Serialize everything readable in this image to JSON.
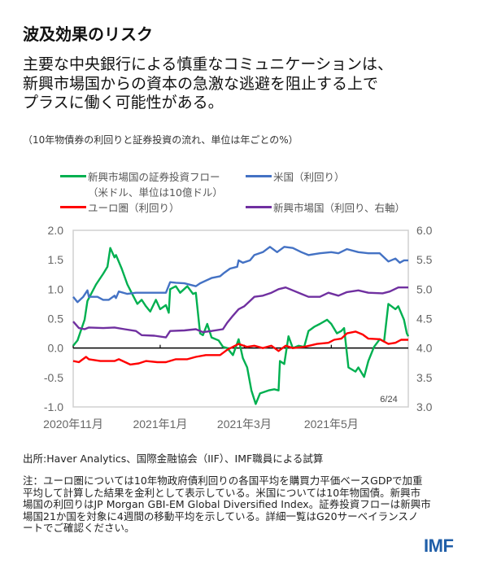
{
  "title": "波及効果のリスク",
  "subtitle_lines": [
    "主要な中央銀行による慎重なコミュニケーションは、",
    "新興市場国からの資本の急激な逃避を阻止する上で",
    "プラスに働く可能性がある。"
  ],
  "units_note": "（10年物債券の利回りと証券投資の流れ、単位は年ごとの%）",
  "legend": [
    {
      "label": "新興市場国の証券投資フロー",
      "label2": "（米ドル、単位は10億ドル）",
      "color": "#00b050"
    },
    {
      "label": "米国（利回り）",
      "color": "#4472c4"
    },
    {
      "label": "ユーロ圏（利回り）",
      "color": "#ff0000"
    },
    {
      "label": "新興市場国（利回り、右軸）",
      "color": "#7030a0"
    }
  ],
  "source": "出所:Haver Analytics、国際金融協会（IIF）、IMF職員による試算",
  "note_lines": [
    "注：ユーロ圏については10年物政府債利回りの各国平均を購買力平価ベースGDPで加重",
    "平均して計算した結果を金利として表示している。米国については10年物国債。新興市",
    "場国の利回りはJP Morgan GBI-EM Global Diversified Index。証券投資フローは新興市",
    "場国21か国を対象に4週間の移動平均を示している。詳細一覧はG20サーベイランスノ",
    "ートでご確認ください。"
  ],
  "logo": "IMF",
  "chart_data": {
    "type": "line",
    "xlim": [
      "2020-11-01",
      "2021-06-24"
    ],
    "x_ticks": [
      {
        "date": "2020-11-01",
        "label": "2020年11月"
      },
      {
        "date": "2021-01-01",
        "label": "2021年1月"
      },
      {
        "date": "2021-03-01",
        "label": "2021年3月"
      },
      {
        "date": "2021-05-01",
        "label": "2021年5月"
      }
    ],
    "ylim_left": [
      -1.0,
      2.0
    ],
    "y_ticks_left": [
      "2.0",
      "1.5",
      "1.0",
      "0.5",
      "0.0",
      "-0.5",
      "-1.0"
    ],
    "ylim_right": [
      3.0,
      6.0
    ],
    "y_ticks_right": [
      "6.0",
      "5.5",
      "5.0",
      "4.5",
      "4.0",
      "3.5",
      "3.0"
    ],
    "annotation": "6/24",
    "grid": false,
    "series": [
      {
        "name": "新興市場国の証券投資フロー（米ドル、単位は10億ドル）",
        "axis": "left",
        "color": "#00b050",
        "points": [
          [
            "2020-11-01",
            0.04
          ],
          [
            "2020-11-04",
            0.13
          ],
          [
            "2020-11-09",
            0.48
          ],
          [
            "2020-11-11",
            0.8
          ],
          [
            "2020-11-17",
            1.08
          ],
          [
            "2020-11-22",
            1.26
          ],
          [
            "2020-11-25",
            1.38
          ],
          [
            "2020-11-27",
            1.7
          ],
          [
            "2020-11-30",
            1.54
          ],
          [
            "2020-12-01",
            1.58
          ],
          [
            "2020-12-05",
            1.35
          ],
          [
            "2020-12-09",
            1.08
          ],
          [
            "2020-12-13",
            0.89
          ],
          [
            "2020-12-16",
            0.75
          ],
          [
            "2020-12-19",
            0.82
          ],
          [
            "2020-12-22",
            0.71
          ],
          [
            "2020-12-25",
            0.62
          ],
          [
            "2020-12-29",
            0.82
          ],
          [
            "2021-01-01",
            0.66
          ],
          [
            "2021-01-05",
            0.73
          ],
          [
            "2021-01-07",
            0.6
          ],
          [
            "2021-01-08",
            1.0
          ],
          [
            "2021-01-12",
            1.05
          ],
          [
            "2021-01-15",
            0.94
          ],
          [
            "2021-01-20",
            1.05
          ],
          [
            "2021-01-24",
            0.92
          ],
          [
            "2021-01-26",
            0.94
          ],
          [
            "2021-01-29",
            0.25
          ],
          [
            "2021-01-31",
            0.22
          ],
          [
            "2021-02-03",
            0.41
          ],
          [
            "2021-02-06",
            0.18
          ],
          [
            "2021-02-11",
            0.13
          ],
          [
            "2021-02-14",
            0.02
          ],
          [
            "2021-02-17",
            0.0
          ],
          [
            "2021-02-21",
            -0.12
          ],
          [
            "2021-02-25",
            0.15
          ],
          [
            "2021-02-28",
            -0.17
          ],
          [
            "2021-03-03",
            -0.33
          ],
          [
            "2021-03-06",
            -0.72
          ],
          [
            "2021-03-09",
            -0.95
          ],
          [
            "2021-03-12",
            -0.77
          ],
          [
            "2021-03-18",
            -0.72
          ],
          [
            "2021-03-22",
            -0.7
          ],
          [
            "2021-03-25",
            -0.72
          ],
          [
            "2021-03-26",
            -0.22
          ],
          [
            "2021-03-29",
            -0.27
          ],
          [
            "2021-04-01",
            0.2
          ],
          [
            "2021-04-04",
            0.0
          ],
          [
            "2021-04-08",
            0.04
          ],
          [
            "2021-04-12",
            0.02
          ],
          [
            "2021-04-15",
            0.29
          ],
          [
            "2021-04-19",
            0.36
          ],
          [
            "2021-04-23",
            0.41
          ],
          [
            "2021-04-28",
            0.48
          ],
          [
            "2021-05-01",
            0.41
          ],
          [
            "2021-05-05",
            0.25
          ],
          [
            "2021-05-08",
            0.29
          ],
          [
            "2021-05-10",
            0.34
          ],
          [
            "2021-05-13",
            -0.33
          ],
          [
            "2021-05-18",
            -0.4
          ],
          [
            "2021-05-20",
            -0.33
          ],
          [
            "2021-05-24",
            -0.49
          ],
          [
            "2021-05-27",
            -0.22
          ],
          [
            "2021-05-31",
            0.02
          ],
          [
            "2021-06-04",
            0.15
          ],
          [
            "2021-06-07",
            0.11
          ],
          [
            "2021-06-10",
            0.75
          ],
          [
            "2021-06-15",
            0.66
          ],
          [
            "2021-06-17",
            0.71
          ],
          [
            "2021-06-21",
            0.48
          ],
          [
            "2021-06-23",
            0.25
          ],
          [
            "2021-06-24",
            0.2
          ]
        ]
      },
      {
        "name": "米国（利回り）",
        "axis": "left",
        "color": "#4472c4",
        "points": [
          [
            "2020-11-01",
            0.87
          ],
          [
            "2020-11-04",
            0.78
          ],
          [
            "2020-11-08",
            0.87
          ],
          [
            "2020-11-11",
            0.98
          ],
          [
            "2020-11-12",
            0.87
          ],
          [
            "2020-11-18",
            0.87
          ],
          [
            "2020-11-22",
            0.82
          ],
          [
            "2020-11-26",
            0.82
          ],
          [
            "2020-11-30",
            0.89
          ],
          [
            "2020-12-01",
            0.85
          ],
          [
            "2020-12-03",
            0.96
          ],
          [
            "2020-12-09",
            0.92
          ],
          [
            "2020-12-15",
            0.94
          ],
          [
            "2020-12-22",
            0.94
          ],
          [
            "2021-01-05",
            0.94
          ],
          [
            "2021-01-08",
            1.12
          ],
          [
            "2021-01-12",
            1.11
          ],
          [
            "2021-01-18",
            1.1
          ],
          [
            "2021-01-26",
            1.05
          ],
          [
            "2021-01-29",
            1.1
          ],
          [
            "2021-02-06",
            1.19
          ],
          [
            "2021-02-12",
            1.22
          ],
          [
            "2021-02-15",
            1.28
          ],
          [
            "2021-02-19",
            1.35
          ],
          [
            "2021-02-24",
            1.38
          ],
          [
            "2021-02-25",
            1.49
          ],
          [
            "2021-02-28",
            1.45
          ],
          [
            "2021-03-05",
            1.49
          ],
          [
            "2021-03-08",
            1.58
          ],
          [
            "2021-03-14",
            1.63
          ],
          [
            "2021-03-19",
            1.72
          ],
          [
            "2021-03-24",
            1.63
          ],
          [
            "2021-03-29",
            1.72
          ],
          [
            "2021-04-04",
            1.7
          ],
          [
            "2021-04-10",
            1.63
          ],
          [
            "2021-04-15",
            1.58
          ],
          [
            "2021-04-23",
            1.61
          ],
          [
            "2021-05-01",
            1.63
          ],
          [
            "2021-05-06",
            1.61
          ],
          [
            "2021-05-12",
            1.68
          ],
          [
            "2021-05-20",
            1.63
          ],
          [
            "2021-05-27",
            1.61
          ],
          [
            "2021-06-04",
            1.61
          ],
          [
            "2021-06-10",
            1.47
          ],
          [
            "2021-06-15",
            1.52
          ],
          [
            "2021-06-18",
            1.45
          ],
          [
            "2021-06-21",
            1.49
          ],
          [
            "2021-06-24",
            1.49
          ]
        ]
      },
      {
        "name": "ユーロ圏（利回り）",
        "axis": "left",
        "color": "#ff0000",
        "points": [
          [
            "2020-11-01",
            -0.22
          ],
          [
            "2020-11-05",
            -0.24
          ],
          [
            "2020-11-10",
            -0.15
          ],
          [
            "2020-11-12",
            -0.19
          ],
          [
            "2020-11-20",
            -0.22
          ],
          [
            "2020-11-30",
            -0.22
          ],
          [
            "2020-12-03",
            -0.19
          ],
          [
            "2020-12-11",
            -0.28
          ],
          [
            "2020-12-17",
            -0.26
          ],
          [
            "2020-12-22",
            -0.22
          ],
          [
            "2020-12-30",
            -0.24
          ],
          [
            "2021-01-05",
            -0.24
          ],
          [
            "2021-01-12",
            -0.19
          ],
          [
            "2021-01-20",
            -0.19
          ],
          [
            "2021-01-26",
            -0.15
          ],
          [
            "2021-02-02",
            -0.12
          ],
          [
            "2021-02-12",
            -0.12
          ],
          [
            "2021-02-17",
            -0.03
          ],
          [
            "2021-02-25",
            0.07
          ],
          [
            "2021-03-03",
            0.02
          ],
          [
            "2021-03-08",
            0.04
          ],
          [
            "2021-03-14",
            0.0
          ],
          [
            "2021-03-20",
            0.04
          ],
          [
            "2021-03-25",
            -0.05
          ],
          [
            "2021-03-30",
            0.04
          ],
          [
            "2021-04-04",
            0.0
          ],
          [
            "2021-04-12",
            0.02
          ],
          [
            "2021-04-21",
            0.07
          ],
          [
            "2021-04-29",
            0.09
          ],
          [
            "2021-05-03",
            0.14
          ],
          [
            "2021-05-08",
            0.16
          ],
          [
            "2021-05-12",
            0.25
          ],
          [
            "2021-05-18",
            0.28
          ],
          [
            "2021-05-23",
            0.23
          ],
          [
            "2021-05-27",
            0.16
          ],
          [
            "2021-06-04",
            0.15
          ],
          [
            "2021-06-10",
            0.07
          ],
          [
            "2021-06-15",
            0.09
          ],
          [
            "2021-06-19",
            0.14
          ],
          [
            "2021-06-24",
            0.14
          ]
        ]
      },
      {
        "name": "新興市場国（利回り、右軸）",
        "axis": "right",
        "color": "#7030a0",
        "points": [
          [
            "2020-11-01",
            4.45
          ],
          [
            "2020-11-05",
            4.34
          ],
          [
            "2020-11-09",
            4.32
          ],
          [
            "2020-11-12",
            4.35
          ],
          [
            "2020-11-22",
            4.34
          ],
          [
            "2020-11-30",
            4.35
          ],
          [
            "2020-12-07",
            4.32
          ],
          [
            "2020-12-15",
            4.29
          ],
          [
            "2020-12-19",
            4.22
          ],
          [
            "2020-12-28",
            4.21
          ],
          [
            "2021-01-05",
            4.18
          ],
          [
            "2021-01-08",
            4.29
          ],
          [
            "2021-01-18",
            4.3
          ],
          [
            "2021-01-26",
            4.32
          ],
          [
            "2021-01-31",
            4.27
          ],
          [
            "2021-02-06",
            4.29
          ],
          [
            "2021-02-14",
            4.32
          ],
          [
            "2021-02-17",
            4.43
          ],
          [
            "2021-02-21",
            4.55
          ],
          [
            "2021-02-25",
            4.66
          ],
          [
            "2021-03-01",
            4.71
          ],
          [
            "2021-03-05",
            4.8
          ],
          [
            "2021-03-08",
            4.87
          ],
          [
            "2021-03-14",
            4.89
          ],
          [
            "2021-03-20",
            4.94
          ],
          [
            "2021-03-25",
            5.0
          ],
          [
            "2021-03-30",
            5.03
          ],
          [
            "2021-04-04",
            4.98
          ],
          [
            "2021-04-10",
            4.92
          ],
          [
            "2021-04-15",
            4.87
          ],
          [
            "2021-04-23",
            4.87
          ],
          [
            "2021-04-29",
            4.94
          ],
          [
            "2021-05-06",
            4.89
          ],
          [
            "2021-05-12",
            4.95
          ],
          [
            "2021-05-20",
            4.98
          ],
          [
            "2021-05-27",
            4.94
          ],
          [
            "2021-06-06",
            4.93
          ],
          [
            "2021-06-11",
            4.96
          ],
          [
            "2021-06-17",
            5.03
          ],
          [
            "2021-06-24",
            5.03
          ]
        ]
      }
    ]
  }
}
